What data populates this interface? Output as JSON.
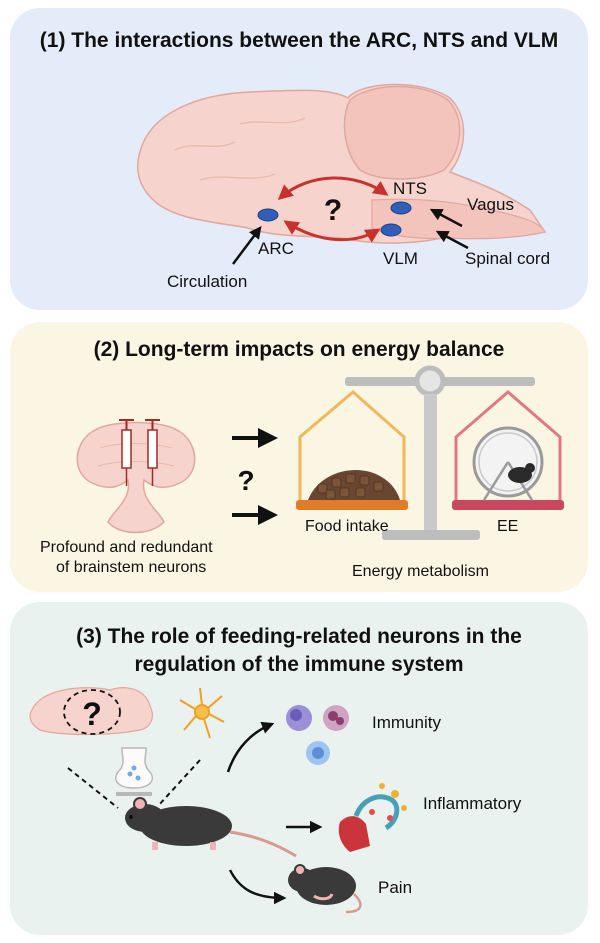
{
  "panel1": {
    "title": "(1) The interactions between the ARC, NTS and VLM",
    "labels": {
      "nts": "NTS",
      "vagus": "Vagus",
      "arc": "ARC",
      "vlm": "VLM",
      "spinal_cord": "Spinal cord",
      "circulation": "Circulation",
      "question": "?"
    }
  },
  "panel2": {
    "title": "(2) Long-term impacts on energy balance",
    "labels": {
      "question": "?",
      "food_intake": "Food intake",
      "ee": "EE",
      "energy_metabolism": "Energy metabolism",
      "caption_line1": "Profound and redundant",
      "caption_line2": "of brainstem neurons"
    }
  },
  "panel3": {
    "title_line1": "(3) The role of feeding-related neurons in the",
    "title_line2": "regulation of the immune system",
    "labels": {
      "question": "?",
      "immunity": "Immunity",
      "inflammatory": "Inflammatory",
      "pain": "Pain"
    }
  },
  "colors": {
    "panel1_bg": "#e4ecf9",
    "panel2_bg": "#fbf6e4",
    "panel3_bg": "#e9f2ee",
    "brain": "#f6d3cd",
    "brain_outline": "#e0a79e",
    "arrow_red": "#c8322d",
    "nucleus": "#2f5fb8",
    "scale": "#bdbdbd",
    "food_house": "#f0b85a",
    "ee_house": "#e07787"
  }
}
